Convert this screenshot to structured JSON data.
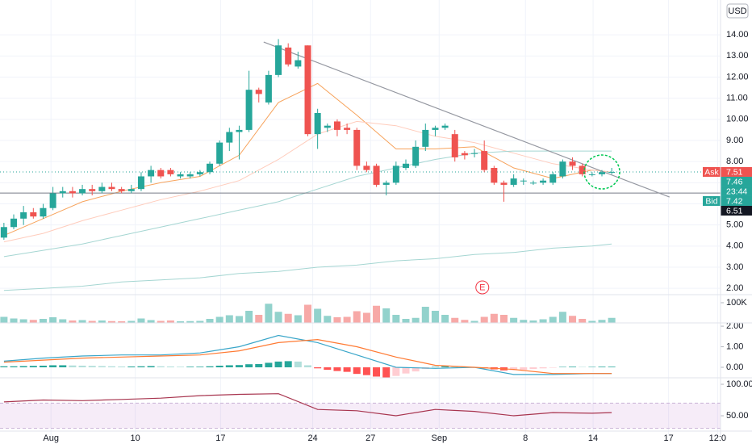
{
  "chart_data": [
    {
      "type": "candlestick",
      "currency": "USD",
      "up_color": "#26a69a",
      "down_color": "#ef5350",
      "grid": true,
      "xlim": [
        -0.4,
        73.1
      ],
      "ylim": [
        1.7,
        15.65
      ],
      "x": [
        0,
        1,
        2,
        3,
        4,
        5,
        6,
        7,
        8,
        9,
        10,
        11,
        12,
        13,
        14,
        15,
        16,
        17,
        18,
        19,
        20,
        21,
        22,
        23,
        24,
        25,
        26,
        27,
        28,
        29,
        30,
        31,
        32,
        33,
        34,
        35,
        36,
        37,
        38,
        39,
        40,
        41,
        42,
        43,
        44,
        45,
        46,
        47,
        48,
        49,
        50,
        51,
        52,
        53,
        54,
        55,
        56,
        57,
        58,
        59,
        60,
        61,
        62
      ],
      "open": [
        4.4,
        4.9,
        5.3,
        5.6,
        5.4,
        5.8,
        6.5,
        6.6,
        6.5,
        6.7,
        6.6,
        6.8,
        6.7,
        6.6,
        6.7,
        7.3,
        7.6,
        7.6,
        7.3,
        7.3,
        7.4,
        7.5,
        7.9,
        8.9,
        9.4,
        9.5,
        11.4,
        10.8,
        12.1,
        13.4,
        12.5,
        13.5,
        9.3,
        9.6,
        9.9,
        9.6,
        9.5,
        7.8,
        7.8,
        6.9,
        7.0,
        7.7,
        7.8,
        8.7,
        9.5,
        9.6,
        9.3,
        8.4,
        8.4,
        8.5,
        7.7,
        7.0,
        6.9,
        7.1,
        7.0,
        7.0,
        7.0,
        7.3,
        8.0,
        7.8,
        7.4,
        7.4,
        7.5
      ],
      "high": [
        5.1,
        5.5,
        5.9,
        5.8,
        6.0,
        6.8,
        6.8,
        6.8,
        6.9,
        6.9,
        7.0,
        7.0,
        6.8,
        6.9,
        7.5,
        7.8,
        7.7,
        7.7,
        7.5,
        7.5,
        7.6,
        8.0,
        9.0,
        9.6,
        9.7,
        12.3,
        11.5,
        12.3,
        13.8,
        13.6,
        13.2,
        13.5,
        10.5,
        9.8,
        10.0,
        9.8,
        9.6,
        8.0,
        7.9,
        7.1,
        8.0,
        8.1,
        9.0,
        9.8,
        9.7,
        9.8,
        9.5,
        8.5,
        8.6,
        9.0,
        7.8,
        7.1,
        7.4,
        7.2,
        7.1,
        7.2,
        7.5,
        8.1,
        8.2,
        7.9,
        7.5,
        7.6,
        7.7
      ],
      "low": [
        4.3,
        4.8,
        5.0,
        5.3,
        5.3,
        5.7,
        6.3,
        6.3,
        6.4,
        6.4,
        6.5,
        6.6,
        6.5,
        6.5,
        6.6,
        7.0,
        7.2,
        7.3,
        7.2,
        7.2,
        7.3,
        7.4,
        7.8,
        8.5,
        8.1,
        9.4,
        10.8,
        10.7,
        12.0,
        12.5,
        12.4,
        9.2,
        8.6,
        9.4,
        9.2,
        9.3,
        7.6,
        7.5,
        6.8,
        6.4,
        6.9,
        7.6,
        7.7,
        8.5,
        9.2,
        9.5,
        8.0,
        8.1,
        8.2,
        7.5,
        6.9,
        6.1,
        6.8,
        6.9,
        6.9,
        6.9,
        6.9,
        7.2,
        7.6,
        7.3,
        7.3,
        7.3,
        7.4
      ],
      "close": [
        4.9,
        5.3,
        5.6,
        5.4,
        5.8,
        6.5,
        6.6,
        6.5,
        6.7,
        6.6,
        6.8,
        6.7,
        6.6,
        6.7,
        7.3,
        7.6,
        7.3,
        7.4,
        7.4,
        7.4,
        7.5,
        7.9,
        8.9,
        9.4,
        9.5,
        11.4,
        11.2,
        12.1,
        13.5,
        12.6,
        12.8,
        9.3,
        10.3,
        9.7,
        9.5,
        9.5,
        7.8,
        7.6,
        6.9,
        7.0,
        7.8,
        7.9,
        8.7,
        9.5,
        9.6,
        9.7,
        8.2,
        8.3,
        8.4,
        7.6,
        7.0,
        6.9,
        7.2,
        7.1,
        7.0,
        7.1,
        7.4,
        8.0,
        7.8,
        7.4,
        7.4,
        7.5,
        7.51
      ],
      "overlays": [
        {
          "color": "#f7a35c",
          "x": [
            0,
            4,
            8,
            12,
            16,
            20,
            24,
            28,
            32,
            36,
            40,
            44,
            48,
            52,
            56,
            60,
            62
          ],
          "values": [
            4.5,
            5.3,
            6.1,
            6.6,
            7.0,
            7.3,
            8.3,
            10.8,
            11.7,
            10.2,
            8.6,
            8.6,
            8.7,
            7.7,
            7.2,
            7.6,
            7.5
          ]
        },
        {
          "color": "#ffccbc",
          "x": [
            0,
            4,
            8,
            12,
            16,
            20,
            24,
            28,
            32,
            36,
            40,
            44,
            48,
            52,
            56,
            60,
            62
          ],
          "values": [
            4.2,
            4.6,
            5.2,
            5.7,
            6.2,
            6.6,
            7.1,
            8.1,
            9.3,
            9.9,
            9.7,
            9.2,
            8.9,
            8.4,
            7.9,
            7.6,
            7.5
          ]
        },
        {
          "color": "#a5d6d2",
          "x": [
            0,
            4,
            8,
            12,
            16,
            20,
            24,
            28,
            32,
            36,
            40,
            44,
            48,
            52,
            56,
            60,
            62
          ],
          "values": [
            3.5,
            3.8,
            4.1,
            4.5,
            4.9,
            5.3,
            5.7,
            6.1,
            6.7,
            7.3,
            7.7,
            8.1,
            8.4,
            8.5,
            8.5,
            8.5,
            8.5
          ]
        },
        {
          "color": "#a5d6d2",
          "x": [
            0,
            4,
            8,
            12,
            16,
            20,
            24,
            28,
            32,
            36,
            40,
            44,
            48,
            52,
            56,
            60,
            62
          ],
          "values": [
            1.9,
            2.0,
            2.1,
            2.3,
            2.4,
            2.5,
            2.7,
            2.8,
            3.0,
            3.1,
            3.3,
            3.4,
            3.6,
            3.7,
            3.9,
            4.0,
            4.1
          ]
        }
      ],
      "trend_line": {
        "color": "#9598a1",
        "x": [
          26.5,
          67.9
        ],
        "values": [
          13.66,
          6.32
        ]
      },
      "horizontal_line": 6.51,
      "ask_label": "Ask",
      "ask": 7.51,
      "last": 7.46,
      "countdown": "23:44",
      "bid_label": "Bid",
      "bid": 7.42,
      "events": [
        {
          "label": "E",
          "x": 48.8
        }
      ],
      "yticks": [
        {
          "value": 2,
          "label": "2.00"
        },
        {
          "value": 3,
          "label": "3.00"
        },
        {
          "value": 4,
          "label": "4.00"
        },
        {
          "value": 5,
          "label": "5.00"
        },
        {
          "value": 6,
          "label": "6.00"
        },
        {
          "value": 7,
          "label": "7.00"
        },
        {
          "value": 8,
          "label": "8.00"
        },
        {
          "value": 9,
          "label": "9.00"
        },
        {
          "value": 10,
          "label": "10.00"
        },
        {
          "value": 11,
          "label": "11.00"
        },
        {
          "value": 12,
          "label": "12.00"
        },
        {
          "value": 13,
          "label": "13.00"
        },
        {
          "value": 14,
          "label": "14.00"
        }
      ],
      "xticks": [
        {
          "value": 4.8,
          "label": "Aug"
        },
        {
          "value": 13.4,
          "label": "10"
        },
        {
          "value": 22.1,
          "label": "17"
        },
        {
          "value": 31.5,
          "label": "24"
        },
        {
          "value": 37.4,
          "label": "27"
        },
        {
          "value": 44.4,
          "label": "Sep"
        },
        {
          "value": 53.2,
          "label": "8"
        },
        {
          "value": 60.1,
          "label": "14"
        },
        {
          "value": 67.8,
          "label": "17"
        },
        {
          "value": 72.8,
          "label": "12:0"
        }
      ]
    },
    {
      "type": "bar",
      "up_color": "rgba(38,166,154,0.5)",
      "down_color": "rgba(239,83,80,0.5)",
      "ylim": [
        0,
        140000
      ],
      "yticks": [
        {
          "value": 100000,
          "label": "100K"
        }
      ],
      "values": [
        30000,
        22000,
        18000,
        15000,
        20000,
        28000,
        18000,
        12000,
        14000,
        10000,
        12000,
        9000,
        8000,
        10000,
        22000,
        14000,
        10000,
        12000,
        8000,
        9000,
        10000,
        20000,
        30000,
        38000,
        34000,
        60000,
        40000,
        95000,
        55000,
        45000,
        38000,
        90000,
        70000,
        35000,
        28000,
        30000,
        58000,
        50000,
        85000,
        72000,
        40000,
        20000,
        25000,
        80000,
        60000,
        40000,
        25000,
        15000,
        10000,
        30000,
        45000,
        40000,
        25000,
        15000,
        12000,
        18000,
        30000,
        55000,
        35000,
        20000,
        10000,
        15000,
        25000
      ]
    },
    {
      "type": "macd",
      "colors": [
        "#26a69a",
        "#b2dfdb",
        "#ff5252",
        "#ffcdd2"
      ],
      "ylim": [
        -0.51,
        2.16
      ],
      "yticks": [
        {
          "value": 2,
          "label": "2.00"
        },
        {
          "value": 1,
          "label": "1.00"
        },
        {
          "value": 0,
          "label": "0.00"
        }
      ],
      "histogram": [
        0.05,
        0.05,
        0.06,
        0.07,
        0.08,
        0.1,
        0.1,
        0.09,
        0.08,
        0.07,
        0.06,
        0.05,
        0.04,
        0.04,
        0.05,
        0.06,
        0.05,
        0.04,
        0.03,
        0.03,
        0.03,
        0.05,
        0.08,
        0.1,
        0.11,
        0.15,
        0.16,
        0.22,
        0.28,
        0.3,
        0.28,
        0.1,
        -0.05,
        -0.12,
        -0.18,
        -0.22,
        -0.32,
        -0.38,
        -0.45,
        -0.5,
        -0.42,
        -0.3,
        -0.2,
        -0.08,
        0.02,
        0.05,
        0.03,
        0.02,
        -0.02,
        -0.05,
        -0.1,
        -0.15,
        -0.14,
        -0.12,
        -0.08,
        -0.05,
        -0.02,
        0.02,
        0.03,
        0.02,
        0.02,
        0.03,
        0.03
      ],
      "lines": [
        {
          "color": "#3aa6c9",
          "x": [
            0,
            4,
            8,
            12,
            16,
            20,
            24,
            28,
            32,
            36,
            40,
            44,
            48,
            52,
            56,
            60,
            62
          ],
          "values": [
            0.3,
            0.45,
            0.55,
            0.6,
            0.6,
            0.7,
            1.0,
            1.55,
            1.2,
            0.6,
            0.0,
            -0.05,
            0.0,
            -0.35,
            -0.35,
            -0.3,
            -0.3
          ]
        },
        {
          "color": "#ff7a33",
          "x": [
            0,
            4,
            8,
            12,
            16,
            20,
            24,
            28,
            32,
            36,
            40,
            44,
            48,
            52,
            56,
            60,
            62
          ],
          "values": [
            0.25,
            0.35,
            0.45,
            0.5,
            0.55,
            0.6,
            0.8,
            1.2,
            1.35,
            1.0,
            0.5,
            0.1,
            0.0,
            -0.1,
            -0.3,
            -0.3,
            -0.3
          ]
        }
      ]
    },
    {
      "type": "line",
      "color": "#a8354f",
      "band": [
        30,
        70
      ],
      "band_color": "rgba(156,39,176,0.09)",
      "ylim": [
        18,
        110.3
      ],
      "yticks": [
        {
          "value": 100,
          "label": "100.00"
        },
        {
          "value": 50,
          "label": "50.00"
        }
      ],
      "x": [
        0,
        4,
        8,
        12,
        16,
        20,
        24,
        28,
        32,
        36,
        40,
        44,
        48,
        52,
        56,
        60,
        62
      ],
      "values": [
        72,
        75,
        74,
        76,
        78,
        82,
        84,
        85,
        60,
        58,
        50,
        60,
        57,
        50,
        55,
        54,
        55
      ]
    }
  ]
}
